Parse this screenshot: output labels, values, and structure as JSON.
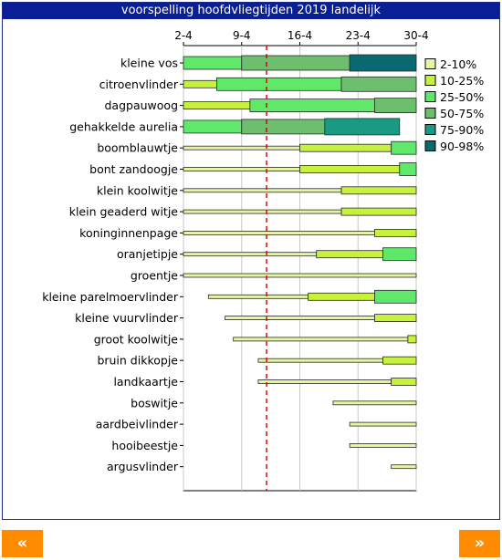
{
  "chart_data": {
    "type": "bar",
    "title": "voorspelling hoofdvliegtijden 2019 landelijk",
    "x_ticks": [
      "2-4",
      "9-4",
      "16-4",
      "23-4",
      "30-4"
    ],
    "x_range": [
      "2-4",
      "30-4"
    ],
    "today_marker": "12-4",
    "grid": true,
    "legend_position": "right",
    "legend": [
      {
        "label": "2-10%",
        "color": "#e2f6a4"
      },
      {
        "label": "10-25%",
        "color": "#c6f23c"
      },
      {
        "label": "25-50%",
        "color": "#5fe86a"
      },
      {
        "label": "50-75%",
        "color": "#6cbf6c"
      },
      {
        "label": "75-90%",
        "color": "#199a83"
      },
      {
        "label": "90-98%",
        "color": "#0a6970"
      }
    ],
    "species": [
      {
        "name": "kleine vos",
        "segments": [
          [
            "2-4",
            "9-4",
            2
          ],
          [
            "9-4",
            "22-4",
            3
          ],
          [
            "22-4",
            "30-4",
            5
          ]
        ]
      },
      {
        "name": "citroenvlinder",
        "segments": [
          [
            "2-4",
            "6-4",
            1
          ],
          [
            "6-4",
            "21-4",
            2
          ],
          [
            "21-4",
            "30-4",
            3
          ]
        ]
      },
      {
        "name": "dagpauwoog",
        "segments": [
          [
            "2-4",
            "10-4",
            1
          ],
          [
            "10-4",
            "25-4",
            2
          ],
          [
            "25-4",
            "30-4",
            3
          ]
        ]
      },
      {
        "name": "gehakkelde aurelia",
        "segments": [
          [
            "2-4",
            "9-4",
            2
          ],
          [
            "9-4",
            "19-4",
            3
          ],
          [
            "19-4",
            "28-4",
            4
          ]
        ]
      },
      {
        "name": "boomblauwtje",
        "segments": [
          [
            "2-4",
            "16-4",
            0
          ],
          [
            "16-4",
            "27-4",
            1
          ],
          [
            "27-4",
            "30-4",
            2
          ]
        ]
      },
      {
        "name": "bont zandoogje",
        "segments": [
          [
            "2-4",
            "16-4",
            0
          ],
          [
            "16-4",
            "28-4",
            1
          ],
          [
            "28-4",
            "30-4",
            2
          ]
        ]
      },
      {
        "name": "klein koolwitje",
        "segments": [
          [
            "2-4",
            "21-4",
            0
          ],
          [
            "21-4",
            "30-4",
            1
          ]
        ]
      },
      {
        "name": "klein geaderd witje",
        "segments": [
          [
            "2-4",
            "21-4",
            0
          ],
          [
            "21-4",
            "30-4",
            1
          ]
        ]
      },
      {
        "name": "koninginnenpage",
        "segments": [
          [
            "2-4",
            "25-4",
            0
          ],
          [
            "25-4",
            "30-4",
            1
          ]
        ]
      },
      {
        "name": "oranjetipje",
        "segments": [
          [
            "2-4",
            "18-4",
            0
          ],
          [
            "18-4",
            "26-4",
            1
          ],
          [
            "26-4",
            "30-4",
            2
          ]
        ]
      },
      {
        "name": "groentje",
        "segments": [
          [
            "2-4",
            "30-4",
            0
          ]
        ]
      },
      {
        "name": "kleine parelmoervlinder",
        "segments": [
          [
            "5-4",
            "17-4",
            0
          ],
          [
            "17-4",
            "25-4",
            1
          ],
          [
            "25-4",
            "30-4",
            2
          ]
        ]
      },
      {
        "name": "kleine vuurvlinder",
        "segments": [
          [
            "7-4",
            "25-4",
            0
          ],
          [
            "25-4",
            "30-4",
            1
          ]
        ]
      },
      {
        "name": "groot koolwitje",
        "segments": [
          [
            "8-4",
            "29-4",
            0
          ],
          [
            "29-4",
            "30-4",
            1
          ]
        ]
      },
      {
        "name": "bruin dikkopje",
        "segments": [
          [
            "11-4",
            "26-4",
            0
          ],
          [
            "26-4",
            "30-4",
            1
          ]
        ]
      },
      {
        "name": "landkaartje",
        "segments": [
          [
            "11-4",
            "27-4",
            0
          ],
          [
            "27-4",
            "30-4",
            1
          ]
        ]
      },
      {
        "name": "boswitje",
        "segments": [
          [
            "20-4",
            "30-4",
            0
          ]
        ]
      },
      {
        "name": "aardbeivlinder",
        "segments": [
          [
            "22-4",
            "30-4",
            0
          ]
        ]
      },
      {
        "name": "hooibeestje",
        "segments": [
          [
            "22-4",
            "30-4",
            0
          ]
        ]
      },
      {
        "name": "argusvlinder",
        "segments": [
          [
            "27-4",
            "30-4",
            0
          ]
        ]
      }
    ]
  },
  "nav": {
    "prev_label": "«",
    "next_label": "»"
  }
}
